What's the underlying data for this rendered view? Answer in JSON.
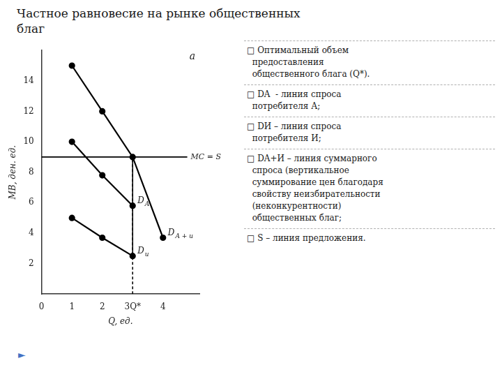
{
  "chart_data": {
    "type": "line",
    "title": [
      "Частное равновесие на рынке общественных",
      "благ"
    ],
    "xlabel": "Q, ед.",
    "ylabel": "МВ, ден. ед.",
    "xlim": [
      0,
      5.2
    ],
    "ylim": [
      0,
      16
    ],
    "xticks": [
      0,
      1,
      2,
      {
        "value": 3,
        "label": "3Q*"
      },
      4
    ],
    "yticks": [
      2,
      4,
      6,
      8,
      10,
      12,
      14
    ],
    "grid": false,
    "series": [
      {
        "name": "D",
        "subscript": "A + и",
        "x": [
          1,
          2,
          3,
          4
        ],
        "values": [
          15,
          12,
          9,
          3.7
        ],
        "color": "#000000",
        "marker": "circle",
        "line_style": "solid"
      },
      {
        "name": "D",
        "subscript": "A",
        "x": [
          1,
          2,
          3
        ],
        "values": [
          10,
          7.8,
          5.8
        ],
        "color": "#000000",
        "marker": "circle",
        "line_style": "solid"
      },
      {
        "name": "D",
        "subscript": "и",
        "x": [
          1,
          2,
          3
        ],
        "values": [
          5,
          3.7,
          2.5
        ],
        "color": "#000000",
        "marker": "circle",
        "line_style": "solid"
      },
      {
        "name": "MC = S",
        "x": [
          0,
          4.8
        ],
        "values": [
          9,
          9
        ],
        "color": "#000000",
        "marker": "none",
        "line_style": "solid"
      },
      {
        "x": [
          3,
          3
        ],
        "values": [
          0,
          9
        ],
        "color": "#000000",
        "marker": "none",
        "line_style": "dashed"
      },
      {
        "x": [
          3,
          3,
          3
        ],
        "values": [
          9,
          5.8,
          2.5
        ],
        "color": "#000000",
        "marker": "none",
        "line_style": "solid"
      }
    ],
    "annotations": [
      "a"
    ],
    "notes": [
      "□ Оптимальный объем\n  предоставления\n  общественного блага (Q*).",
      "□ DA  - линия спроса\n  потребителя А;",
      "□ DИ – линия спроса\n  потребителя И;",
      "□ DA+И – линия суммарного\n  спроса (вертикальное\n  суммирование цен благодаря\n  свойству неизбирательности\n  (неконкурентности)\n  общественных благ;",
      "□ S – линия предложения."
    ],
    "footer": {
      "text": "►",
      "color": "#4472c4"
    }
  }
}
